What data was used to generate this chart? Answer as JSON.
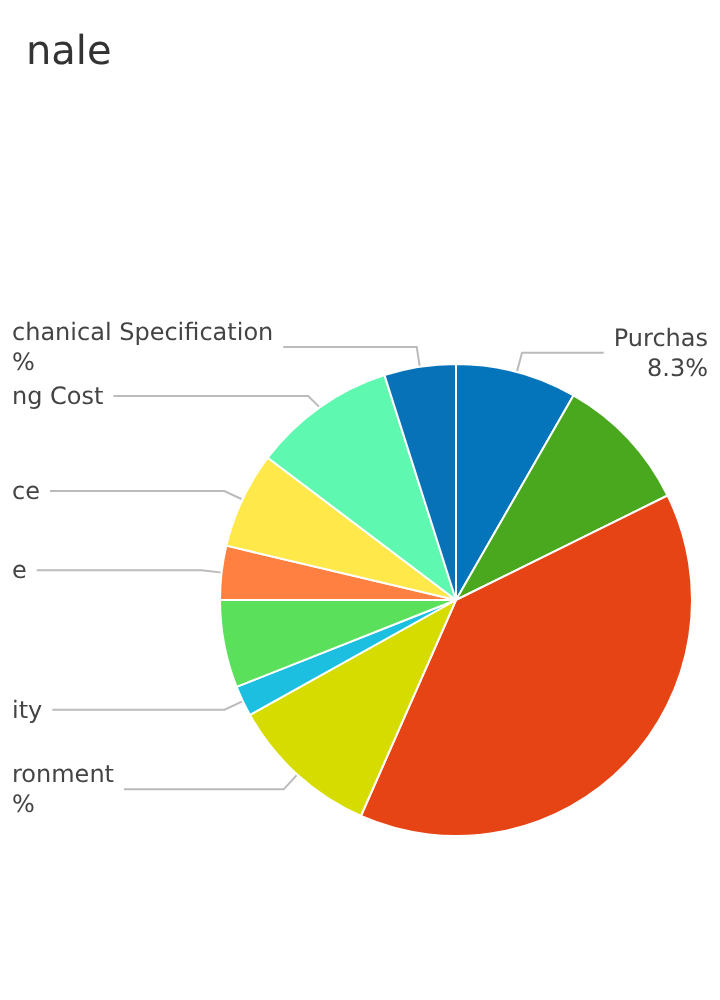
{
  "chart_data": {
    "type": "pie",
    "title": "nale",
    "categories": [
      "Purchas",
      null,
      null,
      "ronment",
      "ity",
      null,
      "e",
      "ce",
      "ng Cost",
      "chanical Specification"
    ],
    "values": [
      8.3,
      9.4,
      38.9,
      10.3,
      2.1,
      6.0,
      3.7,
      6.6,
      9.8,
      4.9
    ],
    "value_labels": [
      "8.3%",
      null,
      null,
      "%",
      null,
      null,
      null,
      null,
      null,
      "%"
    ],
    "colors": [
      "#0474bb",
      "#4aa81f",
      "#e64414",
      "#d7dc00",
      "#1cbfe0",
      "#5be05b",
      "#ff8040",
      "#ffe84a",
      "#5ff8b0",
      "#0772b8"
    ],
    "legend": false
  }
}
